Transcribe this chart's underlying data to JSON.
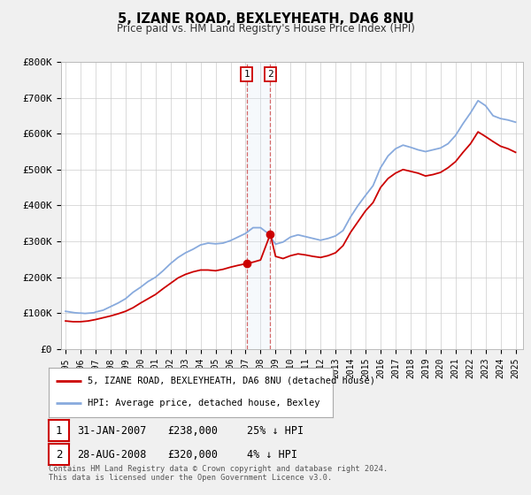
{
  "title": "5, IZANE ROAD, BEXLEYHEATH, DA6 8NU",
  "subtitle": "Price paid vs. HM Land Registry's House Price Index (HPI)",
  "ylim": [
    0,
    800000
  ],
  "yticks": [
    0,
    100000,
    200000,
    300000,
    400000,
    500000,
    600000,
    700000,
    800000
  ],
  "ytick_labels": [
    "£0",
    "£100K",
    "£200K",
    "£300K",
    "£400K",
    "£500K",
    "£600K",
    "£700K",
    "£800K"
  ],
  "background_color": "#f0f0f0",
  "plot_bg_color": "#ffffff",
  "grid_color": "#cccccc",
  "hpi_color": "#88aadd",
  "price_color": "#cc0000",
  "marker_color": "#cc0000",
  "sale1_date": 2007.08,
  "sale1_price": 238000,
  "sale2_date": 2008.65,
  "sale2_price": 320000,
  "shade_color": "#dde8f5",
  "vline_color": "#cc4444",
  "legend_line1": "5, IZANE ROAD, BEXLEYHEATH, DA6 8NU (detached house)",
  "legend_line2": "HPI: Average price, detached house, Bexley",
  "table_row1": [
    "1",
    "31-JAN-2007",
    "£238,000",
    "25% ↓ HPI"
  ],
  "table_row2": [
    "2",
    "28-AUG-2008",
    "£320,000",
    "4% ↓ HPI"
  ],
  "footnote1": "Contains HM Land Registry data © Crown copyright and database right 2024.",
  "footnote2": "This data is licensed under the Open Government Licence v3.0.",
  "xmin": 1994.7,
  "xmax": 2025.5,
  "hpi_data": [
    [
      1995.0,
      105000
    ],
    [
      1995.3,
      103000
    ],
    [
      1995.6,
      101000
    ],
    [
      1995.9,
      100000
    ],
    [
      1996.0,
      100000
    ],
    [
      1996.3,
      99000
    ],
    [
      1996.6,
      100000
    ],
    [
      1996.9,
      101000
    ],
    [
      1997.0,
      103000
    ],
    [
      1997.5,
      108000
    ],
    [
      1998.0,
      118000
    ],
    [
      1998.5,
      128000
    ],
    [
      1999.0,
      140000
    ],
    [
      1999.5,
      158000
    ],
    [
      2000.0,
      172000
    ],
    [
      2000.5,
      188000
    ],
    [
      2001.0,
      200000
    ],
    [
      2001.5,
      218000
    ],
    [
      2002.0,
      238000
    ],
    [
      2002.5,
      255000
    ],
    [
      2003.0,
      268000
    ],
    [
      2003.5,
      278000
    ],
    [
      2004.0,
      290000
    ],
    [
      2004.5,
      295000
    ],
    [
      2005.0,
      293000
    ],
    [
      2005.5,
      295000
    ],
    [
      2006.0,
      302000
    ],
    [
      2006.5,
      312000
    ],
    [
      2007.0,
      322000
    ],
    [
      2007.5,
      338000
    ],
    [
      2008.0,
      338000
    ],
    [
      2008.5,
      322000
    ],
    [
      2009.0,
      292000
    ],
    [
      2009.5,
      298000
    ],
    [
      2010.0,
      312000
    ],
    [
      2010.5,
      318000
    ],
    [
      2011.0,
      313000
    ],
    [
      2011.5,
      308000
    ],
    [
      2012.0,
      303000
    ],
    [
      2012.5,
      308000
    ],
    [
      2013.0,
      315000
    ],
    [
      2013.5,
      330000
    ],
    [
      2014.0,
      368000
    ],
    [
      2014.5,
      400000
    ],
    [
      2015.0,
      428000
    ],
    [
      2015.5,
      455000
    ],
    [
      2016.0,
      505000
    ],
    [
      2016.5,
      538000
    ],
    [
      2017.0,
      558000
    ],
    [
      2017.5,
      568000
    ],
    [
      2018.0,
      562000
    ],
    [
      2018.5,
      555000
    ],
    [
      2019.0,
      550000
    ],
    [
      2019.5,
      555000
    ],
    [
      2020.0,
      560000
    ],
    [
      2020.5,
      572000
    ],
    [
      2021.0,
      595000
    ],
    [
      2021.5,
      628000
    ],
    [
      2022.0,
      658000
    ],
    [
      2022.5,
      692000
    ],
    [
      2023.0,
      678000
    ],
    [
      2023.5,
      650000
    ],
    [
      2024.0,
      642000
    ],
    [
      2024.5,
      638000
    ],
    [
      2025.0,
      632000
    ]
  ],
  "price_data": [
    [
      1995.0,
      78000
    ],
    [
      1995.5,
      76000
    ],
    [
      1996.0,
      76000
    ],
    [
      1996.5,
      78000
    ],
    [
      1997.0,
      82000
    ],
    [
      1997.5,
      87000
    ],
    [
      1998.0,
      92000
    ],
    [
      1998.5,
      98000
    ],
    [
      1999.0,
      105000
    ],
    [
      1999.5,
      115000
    ],
    [
      2000.0,
      128000
    ],
    [
      2000.5,
      140000
    ],
    [
      2001.0,
      152000
    ],
    [
      2001.5,
      168000
    ],
    [
      2002.0,
      183000
    ],
    [
      2002.5,
      198000
    ],
    [
      2003.0,
      208000
    ],
    [
      2003.5,
      215000
    ],
    [
      2004.0,
      220000
    ],
    [
      2004.5,
      220000
    ],
    [
      2005.0,
      218000
    ],
    [
      2005.5,
      222000
    ],
    [
      2006.0,
      228000
    ],
    [
      2006.5,
      233000
    ],
    [
      2007.08,
      238000
    ],
    [
      2007.5,
      242000
    ],
    [
      2008.0,
      248000
    ],
    [
      2008.65,
      320000
    ],
    [
      2009.0,
      258000
    ],
    [
      2009.5,
      252000
    ],
    [
      2010.0,
      260000
    ],
    [
      2010.5,
      265000
    ],
    [
      2011.0,
      262000
    ],
    [
      2011.5,
      258000
    ],
    [
      2012.0,
      255000
    ],
    [
      2012.5,
      260000
    ],
    [
      2013.0,
      268000
    ],
    [
      2013.5,
      288000
    ],
    [
      2014.0,
      325000
    ],
    [
      2014.5,
      355000
    ],
    [
      2015.0,
      385000
    ],
    [
      2015.5,
      408000
    ],
    [
      2016.0,
      450000
    ],
    [
      2016.5,
      475000
    ],
    [
      2017.0,
      490000
    ],
    [
      2017.5,
      500000
    ],
    [
      2018.0,
      495000
    ],
    [
      2018.5,
      490000
    ],
    [
      2019.0,
      482000
    ],
    [
      2019.5,
      486000
    ],
    [
      2020.0,
      492000
    ],
    [
      2020.5,
      505000
    ],
    [
      2021.0,
      522000
    ],
    [
      2021.5,
      548000
    ],
    [
      2022.0,
      572000
    ],
    [
      2022.5,
      605000
    ],
    [
      2023.0,
      592000
    ],
    [
      2023.5,
      578000
    ],
    [
      2024.0,
      565000
    ],
    [
      2024.5,
      558000
    ],
    [
      2025.0,
      548000
    ]
  ]
}
